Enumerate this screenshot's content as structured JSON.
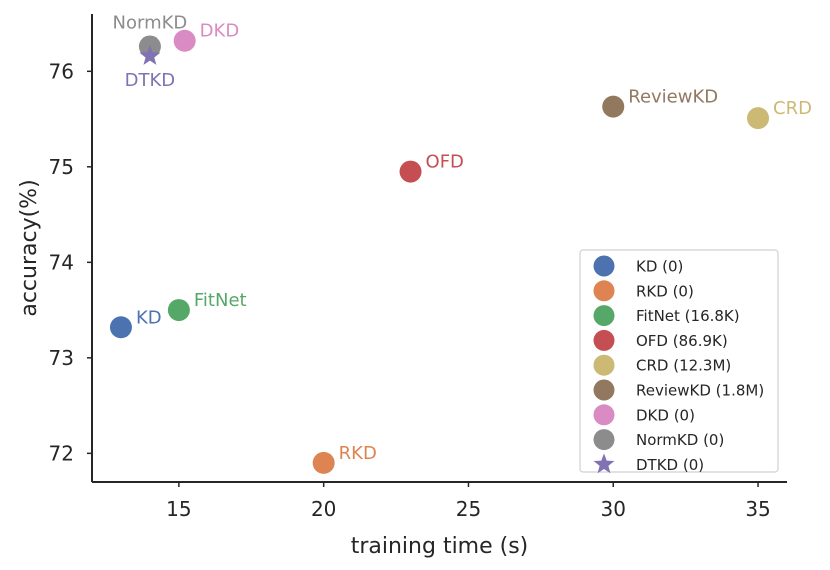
{
  "chart_data": {
    "type": "scatter",
    "xlabel": "training time (s)",
    "ylabel": "accuracy(%)",
    "xlim": [
      12,
      36
    ],
    "ylim": [
      71.7,
      76.6
    ],
    "xticks": [
      15,
      20,
      25,
      30,
      35
    ],
    "yticks": [
      72,
      73,
      74,
      75,
      76
    ],
    "grid": false,
    "legend_position": "bottom-right",
    "series": [
      {
        "name": "KD",
        "legend": "KD (0)",
        "x": 13,
        "y": 73.32,
        "color": "#4c72b0",
        "marker": "circle",
        "label_side": "right"
      },
      {
        "name": "RKD",
        "legend": "RKD (0)",
        "x": 20,
        "y": 71.9,
        "color": "#dd8452",
        "marker": "circle",
        "label_side": "right"
      },
      {
        "name": "FitNet",
        "legend": "FitNet (16.8K)",
        "x": 15,
        "y": 73.5,
        "color": "#55a868",
        "marker": "circle",
        "label_side": "right"
      },
      {
        "name": "OFD",
        "legend": "OFD (86.9K)",
        "x": 23,
        "y": 74.95,
        "color": "#c44e52",
        "marker": "circle",
        "label_side": "right"
      },
      {
        "name": "CRD",
        "legend": "CRD (12.3M)",
        "x": 35,
        "y": 75.51,
        "color": "#ccb974",
        "marker": "circle",
        "label_side": "right"
      },
      {
        "name": "ReviewKD",
        "legend": "ReviewKD (1.8M)",
        "x": 30,
        "y": 75.63,
        "color": "#937860",
        "marker": "circle",
        "label_side": "right"
      },
      {
        "name": "DKD",
        "legend": "DKD (0)",
        "x": 15.2,
        "y": 76.32,
        "color": "#da8bc3",
        "marker": "circle",
        "label_side": "right"
      },
      {
        "name": "NormKD",
        "legend": "NormKD (0)",
        "x": 14,
        "y": 76.26,
        "color": "#8c8c8c",
        "marker": "circle",
        "label_side": "above"
      },
      {
        "name": "DTKD",
        "legend": "DTKD (0)",
        "x": 14,
        "y": 76.16,
        "color": "#8172b3",
        "marker": "star",
        "label_side": "below"
      }
    ]
  }
}
